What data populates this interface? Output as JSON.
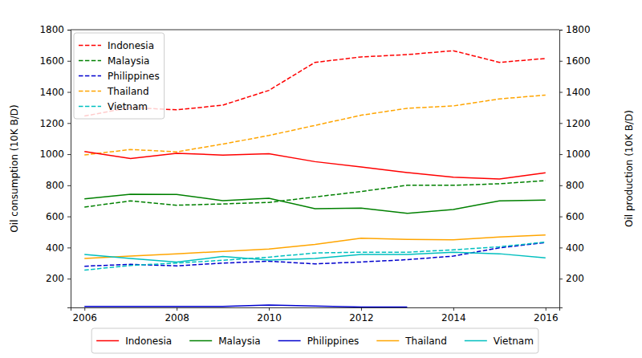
{
  "chart_data": {
    "type": "line",
    "x": [
      2006,
      2007,
      2008,
      2009,
      2010,
      2011,
      2012,
      2013,
      2014,
      2015,
      2016
    ],
    "xlim": [
      2005.7,
      2016.3
    ],
    "xticks": [
      2006,
      2008,
      2010,
      2012,
      2014,
      2016
    ],
    "ylim": [
      15,
      1800
    ],
    "yticks": [
      200,
      400,
      600,
      800,
      1000,
      1200,
      1400,
      1600,
      1800
    ],
    "y2lim": [
      15,
      1800
    ],
    "y2ticks": [
      200,
      400,
      600,
      800,
      1000,
      1200,
      1400,
      1600,
      1800
    ],
    "ylabel": "Oil consumption (10K B/D)",
    "y2label": "Oil production (10K B/D)",
    "series": [
      {
        "name": "Indonesia",
        "color": "#ff0000",
        "line_style": "dashed",
        "legend": "upper left",
        "values": [
          1245,
          1300,
          1285,
          1315,
          1410,
          1590,
          1625,
          1640,
          1665,
          1590,
          1615
        ]
      },
      {
        "name": "Malaysia",
        "color": "#008000",
        "line_style": "dashed",
        "legend": "upper left",
        "values": [
          660,
          700,
          672,
          680,
          690,
          725,
          760,
          800,
          800,
          810,
          830
        ]
      },
      {
        "name": "Philippines",
        "color": "#0000cd",
        "line_style": "dashed",
        "legend": "upper left",
        "values": [
          280,
          292,
          282,
          300,
          312,
          295,
          307,
          322,
          345,
          398,
          432
        ]
      },
      {
        "name": "Thailand",
        "color": "#ffa500",
        "line_style": "dashed",
        "legend": "upper left",
        "values": [
          995,
          1030,
          1015,
          1065,
          1120,
          1185,
          1250,
          1295,
          1310,
          1355,
          1380
        ]
      },
      {
        "name": "Vietnam",
        "color": "#00bfbf",
        "line_style": "dashed",
        "legend": "upper left",
        "values": [
          255,
          285,
          300,
          318,
          338,
          365,
          370,
          370,
          385,
          405,
          435
        ]
      },
      {
        "name": "Indonesia",
        "color": "#ff0000",
        "line_style": "solid",
        "legend": "lower center",
        "axis": "y2",
        "values": [
          1017,
          972,
          1006,
          994,
          1003,
          952,
          918,
          882,
          852,
          840,
          881
        ]
      },
      {
        "name": "Malaysia",
        "color": "#008000",
        "line_style": "solid",
        "legend": "lower center",
        "axis": "y2",
        "values": [
          713,
          742,
          741,
          701,
          717,
          650,
          654,
          620,
          645,
          700,
          705
        ]
      },
      {
        "name": "Philippines",
        "color": "#0000cd",
        "line_style": "solid",
        "legend": "lower center",
        "axis": "y2",
        "values": [
          22,
          22,
          22,
          21,
          30,
          24,
          18,
          18,
          null,
          null,
          null
        ]
      },
      {
        "name": "Thailand",
        "color": "#ffa500",
        "line_style": "solid",
        "legend": "lower center",
        "axis": "y2",
        "values": [
          330,
          345,
          360,
          375,
          390,
          420,
          460,
          452,
          450,
          468,
          480
        ]
      },
      {
        "name": "Vietnam",
        "color": "#00bfbf",
        "line_style": "solid",
        "legend": "lower center",
        "axis": "y2",
        "values": [
          355,
          330,
          307,
          342,
          320,
          330,
          355,
          355,
          370,
          360,
          333
        ]
      }
    ]
  }
}
